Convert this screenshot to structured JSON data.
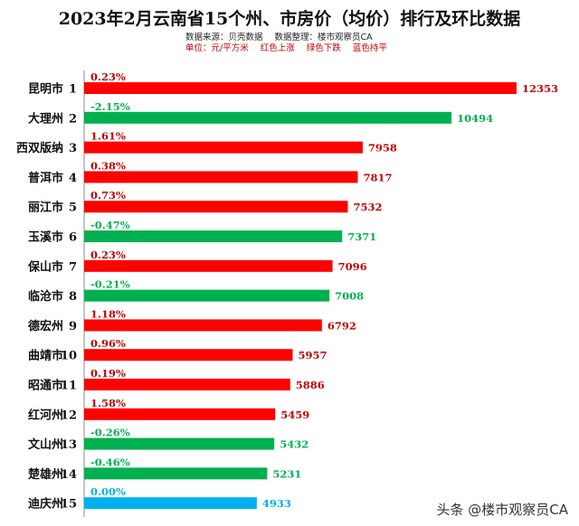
{
  "chart_data": {
    "type": "bar",
    "orientation": "horizontal",
    "title": "2023年2月云南省15个州、市房价（均价）排行及环比数据",
    "source": "数据来源：贝壳数据",
    "compiled_by": "数据整理：楼市观察员CA",
    "unit_note": "单位：元/平方米",
    "legend": [
      "红色上涨",
      "绿色下跌",
      "蓝色持平"
    ],
    "colors": {
      "up": "#ff0000",
      "down": "#00b050",
      "flat": "#00b0f0",
      "up_text": "#c00000",
      "down_text": "#00b050",
      "flat_text": "#00b0f0"
    },
    "categories": [
      "昆明市",
      "大理州",
      "西双版纳",
      "普洱市",
      "丽江市",
      "玉溪市",
      "保山市",
      "临沧市",
      "德宏州",
      "曲靖市",
      "昭通市",
      "红河州",
      "文山州",
      "楚雄州",
      "迪庆州"
    ],
    "ranks": [
      "1",
      "2",
      "3",
      "4",
      "5",
      "6",
      "7",
      "8",
      "9",
      "10",
      "11",
      "12",
      "13",
      "14",
      "15"
    ],
    "values": [
      12353,
      10494,
      7958,
      7817,
      7532,
      7371,
      7096,
      7008,
      6792,
      5957,
      5886,
      5459,
      5432,
      5231,
      4933
    ],
    "changes": [
      "0.23%",
      "-2.15%",
      "1.61%",
      "0.38%",
      "0.73%",
      "-0.47%",
      "0.23%",
      "-0.21%",
      "1.18%",
      "0.96%",
      "0.19%",
      "1.58%",
      "-0.26%",
      "-0.46%",
      "0.00%"
    ],
    "trend": [
      "up",
      "down",
      "up",
      "up",
      "up",
      "down",
      "up",
      "down",
      "up",
      "up",
      "up",
      "up",
      "down",
      "down",
      "flat"
    ],
    "xlim": [
      0,
      12353
    ]
  },
  "watermark": "头条 @楼市观察员CA"
}
